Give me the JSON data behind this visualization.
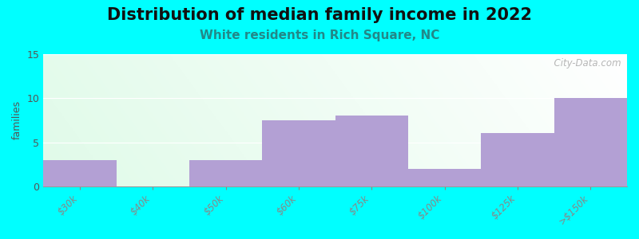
{
  "title": "Distribution of median family income in 2022",
  "subtitle": "White residents in Rich Square, NC",
  "categories": [
    "$30k",
    "$40k",
    "$50k",
    "$60k",
    "$75k",
    "$100k",
    "$125k",
    ">$150k"
  ],
  "values": [
    3,
    0,
    3,
    7.5,
    8,
    2,
    6,
    10
  ],
  "bar_color": "#b3a0d4",
  "background_color": "#00ffff",
  "grad_color_topleft": "#c8f0d8",
  "grad_color_topright": "#f0f5f5",
  "grad_color_bottomleft": "#b0e8c8",
  "grad_color_bottomright": "#e8f0f0",
  "ylabel": "families",
  "ylim": [
    0,
    15
  ],
  "yticks": [
    0,
    5,
    10,
    15
  ],
  "title_fontsize": 15,
  "subtitle_fontsize": 11,
  "subtitle_color": "#228888",
  "watermark": "  City-Data.com",
  "bar_width": 1.0
}
